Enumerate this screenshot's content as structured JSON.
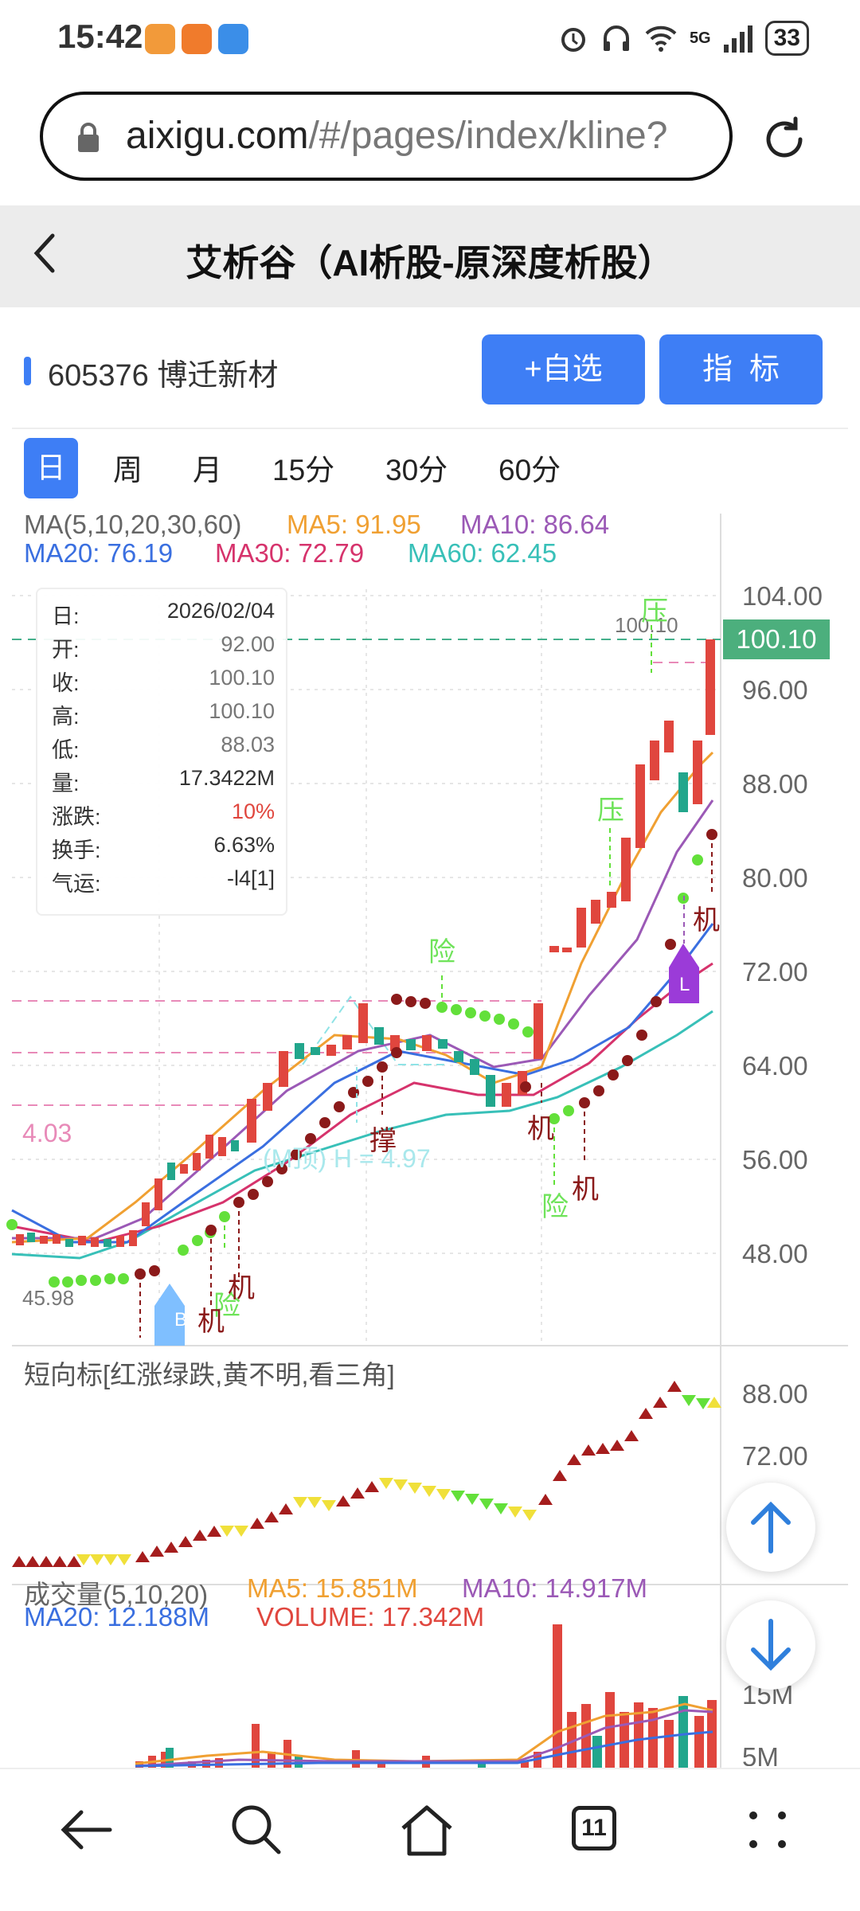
{
  "status_bar": {
    "time": "15:42",
    "battery": "33",
    "network": "5G"
  },
  "browser": {
    "url_host": "aixigu.com",
    "url_path": "/#/pages/index/kline?",
    "tab_count": "11"
  },
  "header": {
    "title": "艾析谷（AI析股-原深度析股）"
  },
  "stock": {
    "code_name": "605376 博迁新材",
    "add_watch_label": "+自选",
    "indicator_label": "指  标"
  },
  "periods": [
    "日",
    "周",
    "月",
    "15分",
    "30分",
    "60分"
  ],
  "ma_legend": {
    "title": "MA(5,10,20,30,60)",
    "ma5": "MA5: 91.95",
    "ma10": "MA10: 86.64",
    "ma20": "MA20: 76.19",
    "ma30": "MA30: 72.79",
    "ma60": "MA60: 62.45"
  },
  "info_box": [
    {
      "k": "日:",
      "v": "2026/02/04"
    },
    {
      "k": "开:",
      "v": "92.00"
    },
    {
      "k": "收:",
      "v": "100.10"
    },
    {
      "k": "高:",
      "v": "100.10"
    },
    {
      "k": "低:",
      "v": "88.03"
    },
    {
      "k": "量:",
      "v": "17.3422M"
    },
    {
      "k": "涨跌:",
      "v": "10%"
    },
    {
      "k": "换手:",
      "v": "6.63%"
    },
    {
      "k": "气运:",
      "v": "-l4[1]"
    }
  ],
  "price_axis": [
    "104.00",
    "96.00",
    "88.00",
    "80.00",
    "72.00",
    "64.00",
    "56.00",
    "48.00"
  ],
  "last_price": "100.10",
  "high_marker": "100.10",
  "low_marker": "45.98",
  "left_marker": "4.03",
  "pattern_label": "(M顶) H = 4.97",
  "signals": {
    "ya": "压",
    "xian": "险",
    "ji": "机",
    "cheng": "撑",
    "b": "B",
    "l": "L"
  },
  "short_indicator": {
    "title": "短向标[红涨绿跌,黄不明,看三角]",
    "axis": [
      "88.00",
      "72.00"
    ]
  },
  "volume": {
    "title": "成交量(5,10,20)",
    "ma5": "MA5: 15.851M",
    "ma10": "MA10: 14.917M",
    "ma20": "MA20: 12.188M",
    "volume": "VOLUME: 17.342M",
    "axis": [
      "15M",
      "5M"
    ]
  },
  "colors": {
    "accent": "#3e7ef5",
    "up": "#e0463e",
    "down": "#22a68c",
    "ma5": "#f0a032",
    "ma10": "#9b59b6",
    "ma20": "#3a6fe0",
    "ma30": "#d6336c",
    "ma60": "#38c0b8"
  }
}
